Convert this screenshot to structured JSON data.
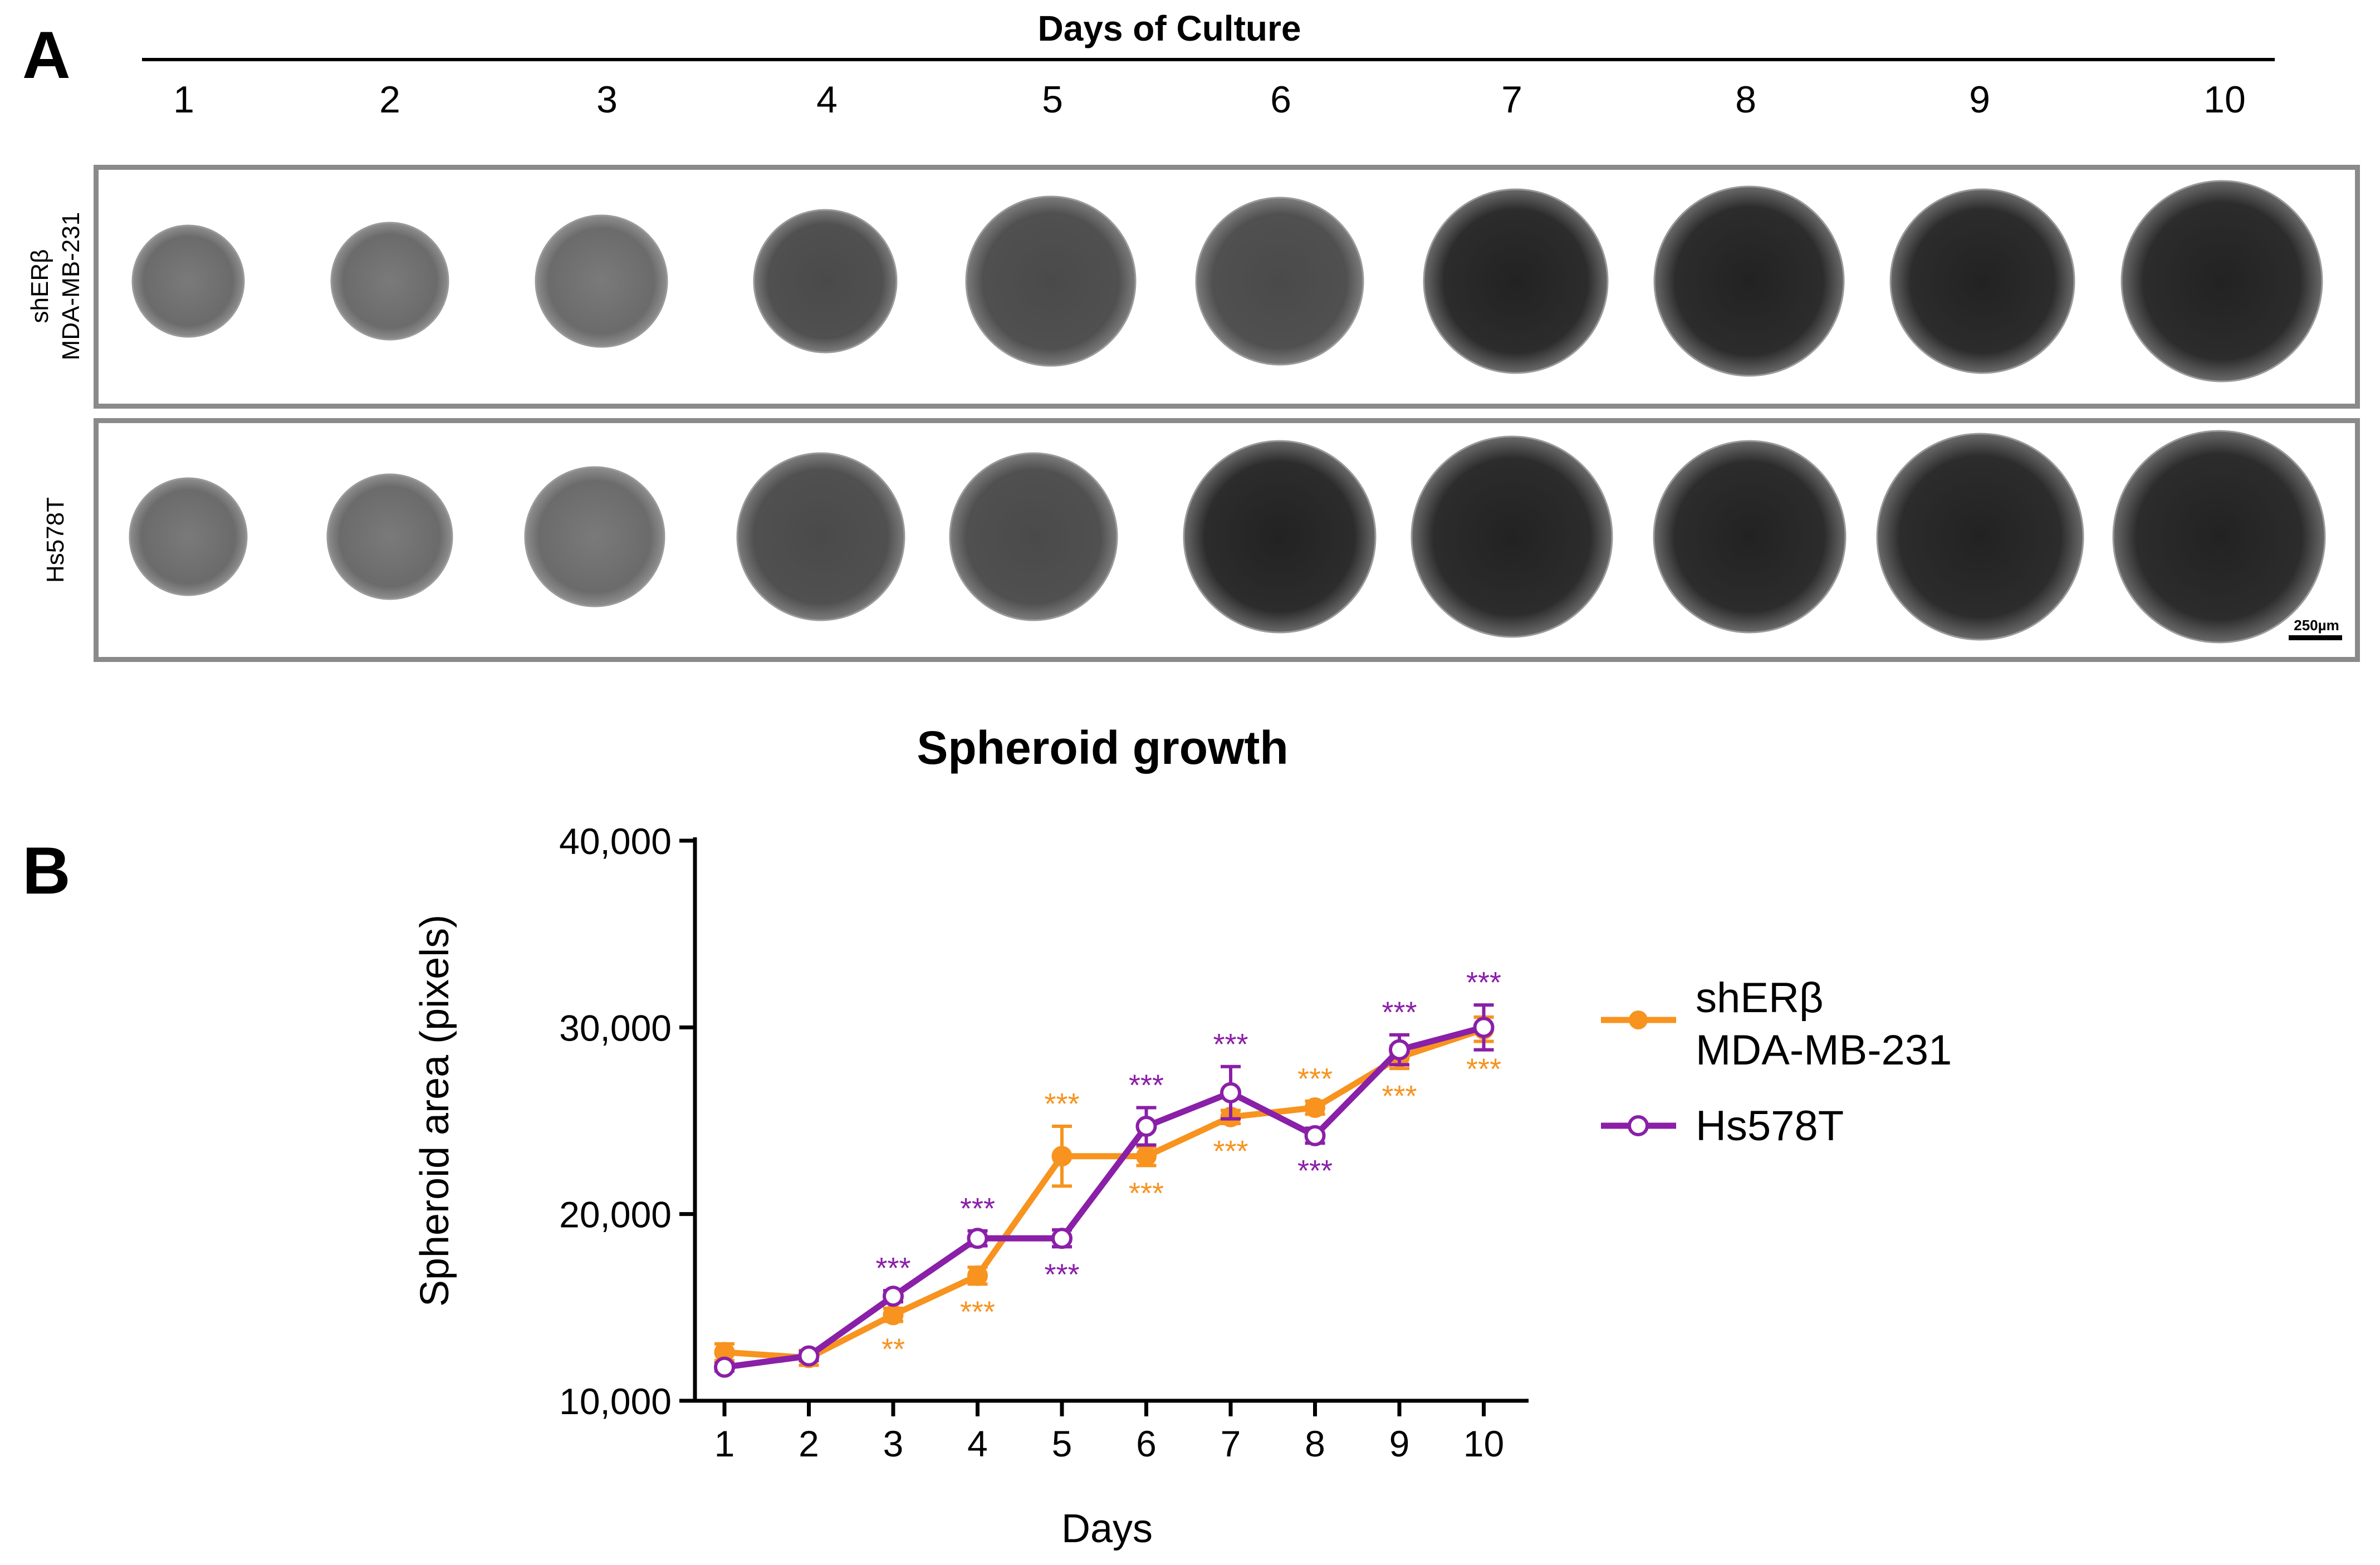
{
  "panel_a": {
    "label": "A",
    "header": "Days of Culture",
    "days": [
      "1",
      "2",
      "3",
      "4",
      "5",
      "6",
      "7",
      "8",
      "9",
      "10"
    ],
    "rows": [
      {
        "label_line1": "shERβ",
        "label_line2": "MDA-MB-231"
      },
      {
        "label_line1": "Hs578T",
        "label_line2": ""
      }
    ],
    "scale_bar": "250µm"
  },
  "panel_b": {
    "label": "B"
  },
  "colors": {
    "orange": "#F7931E",
    "purple": "#8A1FA8",
    "frame": "#8a8a8a"
  },
  "chart_data": {
    "type": "line",
    "title": "Spheroid growth",
    "xlabel": "Days",
    "ylabel": "Spheroid area (pixels)",
    "x": [
      1,
      2,
      3,
      4,
      5,
      6,
      7,
      8,
      9,
      10
    ],
    "xticks": [
      "1",
      "2",
      "3",
      "4",
      "5",
      "6",
      "7",
      "8",
      "9",
      "10"
    ],
    "ylim": [
      10000,
      40000
    ],
    "yticks": [
      10000,
      20000,
      30000,
      40000
    ],
    "ytick_labels": [
      "10,000",
      "20,000",
      "30,000",
      "40,000"
    ],
    "legend_position": "right",
    "series": [
      {
        "name_line1": "shERβ",
        "name_line2": "MDA-MB-231",
        "color": "#F7931E",
        "marker": "filled-circle",
        "values": [
          12600,
          12300,
          14600,
          16700,
          23100,
          23100,
          25200,
          25700,
          28400,
          29900
        ],
        "errors": [
          450,
          400,
          350,
          450,
          1600,
          500,
          350,
          350,
          600,
          650
        ],
        "significance": [
          "",
          "",
          "**",
          "***",
          "***",
          "***",
          "***",
          "***",
          "***",
          "***"
        ],
        "significance_side": [
          "",
          "",
          "below",
          "below",
          "above",
          "below",
          "below",
          "above",
          "below",
          "below"
        ]
      },
      {
        "name_line1": "Hs578T",
        "name_line2": "",
        "color": "#8A1FA8",
        "marker": "open-circle",
        "values": [
          11800,
          12400,
          15600,
          18700,
          18700,
          24700,
          26500,
          24200,
          28800,
          30000
        ],
        "errors": [
          200,
          250,
          300,
          400,
          450,
          1000,
          1400,
          400,
          800,
          1200
        ],
        "significance": [
          "",
          "",
          "***",
          "***",
          "***",
          "***",
          "***",
          "***",
          "***",
          "***"
        ],
        "significance_side": [
          "",
          "",
          "above",
          "above",
          "below",
          "above",
          "above",
          "below",
          "above",
          "above"
        ]
      }
    ]
  }
}
